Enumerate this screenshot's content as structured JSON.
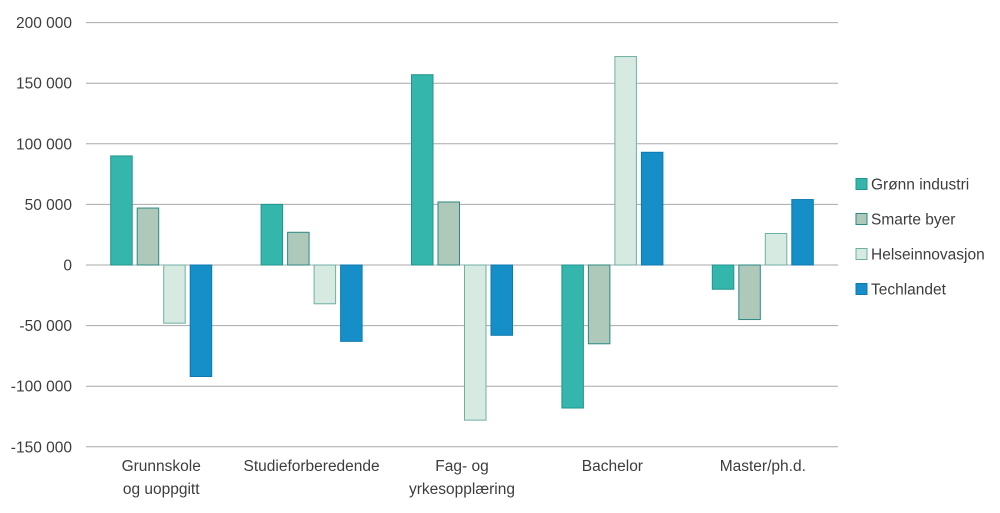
{
  "chart_data": {
    "type": "bar",
    "categories": [
      "Grunnskole og uoppgitt",
      "Studieforberedende",
      "Fag- og yrkesopplæring",
      "Bachelor",
      "Master/ph.d."
    ],
    "category_label_lines": [
      [
        "Grunnskole",
        "og uoppgitt"
      ],
      [
        "Studieforberedende"
      ],
      [
        "Fag- og",
        "yrkesopplæring"
      ],
      [
        "Bachelor"
      ],
      [
        "Master/ph.d."
      ]
    ],
    "series": [
      {
        "name": "Grønn industri",
        "fill": "#35b6ad",
        "border": "#1f958d",
        "values": [
          90000,
          50000,
          157000,
          -118000,
          -20000
        ]
      },
      {
        "name": "Smarte byer",
        "fill": "#aec9b9",
        "border": "#2a8a84",
        "values": [
          47000,
          27000,
          52000,
          -65000,
          -45000
        ]
      },
      {
        "name": "Helseinnovasjon",
        "fill": "#d7eae2",
        "border": "#6fb0a4",
        "values": [
          -48000,
          -32000,
          -128000,
          172000,
          26000
        ]
      },
      {
        "name": "Techlandet",
        "fill": "#168fc8",
        "border": "#0c7ab0",
        "values": [
          -92000,
          -63000,
          -58000,
          93000,
          54000
        ]
      }
    ],
    "ylim": [
      -150000,
      200000
    ],
    "ytick_step": 50000,
    "ytick_labels": [
      "200 000",
      "150 000",
      "100 000",
      "50 000",
      "0",
      "-50 000",
      "-100 000",
      "-150 000"
    ],
    "grid": true,
    "legend_position": "right"
  },
  "styles": {
    "grid_color": "#a8a8a8",
    "text_color": "#3d3d3d",
    "background": "#ffffff"
  }
}
